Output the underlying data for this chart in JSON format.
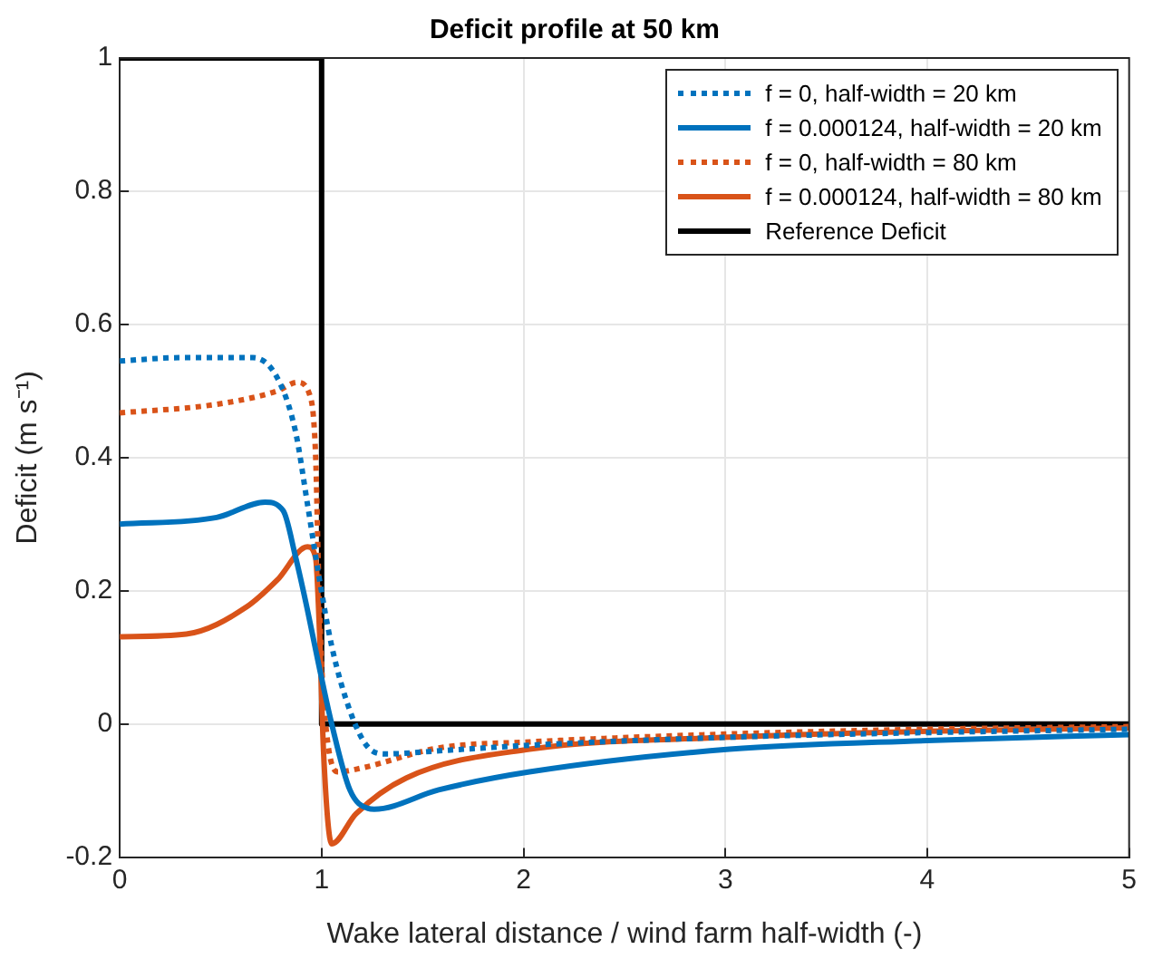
{
  "chart_data": {
    "type": "line",
    "title": "Deficit profile at 50 km",
    "xlabel": "Wake lateral distance / wind farm half-width (-)",
    "ylabel": "Deficit (m s⁻¹)",
    "xlim": [
      0,
      5
    ],
    "xticks": [
      0,
      1,
      2,
      3,
      4,
      5
    ],
    "ylim": [
      -0.2,
      1
    ],
    "yticks": [
      -0.2,
      0,
      0.2,
      0.4,
      0.6,
      0.8,
      1
    ],
    "grid": true,
    "legend": "top right",
    "marker": "none",
    "series": [
      {
        "name": "f = 0, half-width = 20 km",
        "color": "#0072bd",
        "line_style": "dotted",
        "x": [
          0,
          0.3,
          0.66,
          0.78,
          0.87,
          0.93,
          0.985,
          1.05,
          1.14,
          1.23,
          1.32,
          1.6,
          2.03,
          3.02,
          4,
          5
        ],
        "values": [
          0.545,
          0.55,
          0.55,
          0.52,
          0.44,
          0.33,
          0.225,
          0.117,
          0.02,
          -0.035,
          -0.045,
          -0.04,
          -0.032,
          -0.02,
          -0.013,
          -0.008
        ]
      },
      {
        "name": "f = 0.000124, half-width = 20 km",
        "color": "#0072bd",
        "line_style": "solid",
        "x": [
          0,
          0.48,
          0.72,
          0.81,
          0.87,
          0.93,
          0.985,
          1.05,
          1.14,
          1.23,
          1.26,
          1.58,
          2.03,
          3.02,
          4,
          5
        ],
        "values": [
          0.3,
          0.31,
          0.333,
          0.32,
          0.252,
          0.171,
          0.09,
          0,
          -0.099,
          -0.127,
          -0.128,
          -0.099,
          -0.072,
          -0.038,
          -0.025,
          -0.016
        ]
      },
      {
        "name": "f = 0, half-width = 80 km",
        "color": "#d95319",
        "line_style": "dotted",
        "x": [
          0,
          0.48,
          0.78,
          0.88,
          0.94,
          0.97,
          0.985,
          1,
          1.03,
          1.08,
          1.2,
          1.58,
          2.03,
          3.02,
          4,
          5
        ],
        "values": [
          0.467,
          0.48,
          0.5,
          0.513,
          0.495,
          0.405,
          0.225,
          0.09,
          -0.027,
          -0.072,
          -0.066,
          -0.036,
          -0.027,
          -0.015,
          -0.008,
          -0.004
        ]
      },
      {
        "name": "f = 0.000124, half-width = 80 km",
        "color": "#d95319",
        "line_style": "solid",
        "x": [
          0,
          0.33,
          0.63,
          0.78,
          0.93,
          0.97,
          0.99,
          1.01,
          1.05,
          1.17,
          1.42,
          2.03,
          3.02,
          4,
          5
        ],
        "values": [
          0.131,
          0.135,
          0.176,
          0.216,
          0.266,
          0.25,
          0.135,
          -0.045,
          -0.18,
          -0.135,
          -0.081,
          -0.038,
          -0.02,
          -0.011,
          -0.006
        ]
      },
      {
        "name": "Reference Deficit",
        "color": "#000000",
        "line_style": "solid",
        "x": [
          0,
          1,
          1,
          5
        ],
        "values": [
          1,
          1,
          0,
          0
        ]
      }
    ]
  }
}
